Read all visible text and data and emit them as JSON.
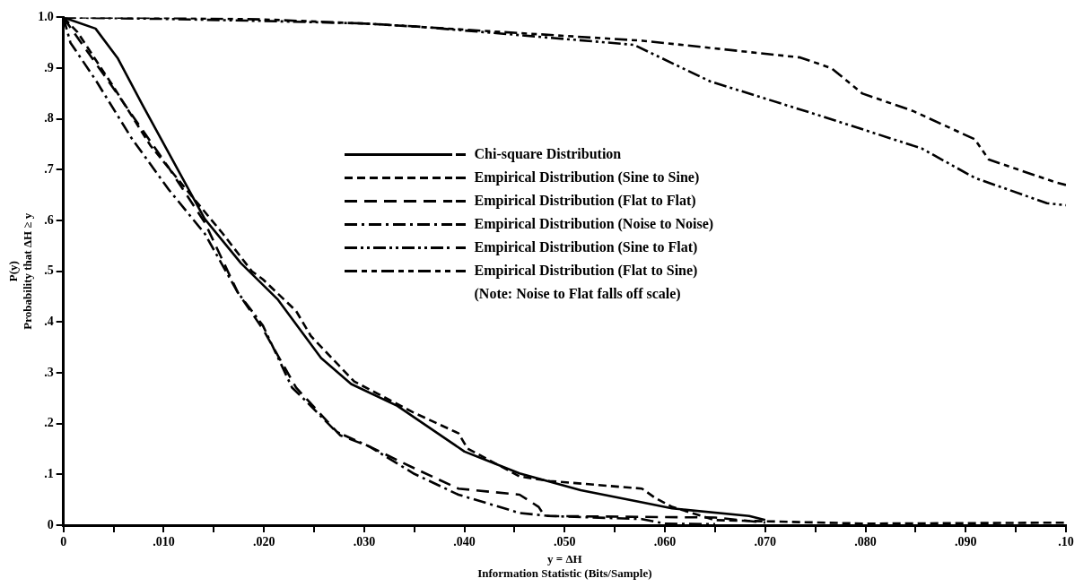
{
  "chart_data": {
    "type": "line",
    "xlabel": "y = ΔH\nInformation Statistic (Bits/Sample)",
    "ylabel": "P(y)\nProbability that ΔH ≥ y",
    "xlim": [
      0,
      0.1
    ],
    "ylim": [
      0,
      1.0
    ],
    "xticks": [
      {
        "value": 0,
        "label": "0"
      },
      {
        "value": 0.005,
        "label": null
      },
      {
        "value": 0.01,
        "label": ".010"
      },
      {
        "value": 0.015,
        "label": null
      },
      {
        "value": 0.02,
        "label": ".020"
      },
      {
        "value": 0.025,
        "label": null
      },
      {
        "value": 0.03,
        "label": ".030"
      },
      {
        "value": 0.035,
        "label": null
      },
      {
        "value": 0.04,
        "label": ".040"
      },
      {
        "value": 0.045,
        "label": null
      },
      {
        "value": 0.05,
        "label": ".050"
      },
      {
        "value": 0.055,
        "label": null
      },
      {
        "value": 0.06,
        "label": ".060"
      },
      {
        "value": 0.065,
        "label": null
      },
      {
        "value": 0.07,
        "label": ".070"
      },
      {
        "value": 0.075,
        "label": null
      },
      {
        "value": 0.08,
        "label": ".080"
      },
      {
        "value": 0.085,
        "label": null
      },
      {
        "value": 0.09,
        "label": ".090"
      },
      {
        "value": 0.095,
        "label": null
      },
      {
        "value": 0.1,
        "label": ".10"
      }
    ],
    "yticks": [
      {
        "value": 0,
        "label": "0"
      },
      {
        "value": 0.1,
        "label": ".1"
      },
      {
        "value": 0.2,
        "label": ".2"
      },
      {
        "value": 0.3,
        "label": ".3"
      },
      {
        "value": 0.4,
        "label": ".4"
      },
      {
        "value": 0.5,
        "label": ".5"
      },
      {
        "value": 0.6,
        "label": ".6"
      },
      {
        "value": 0.7,
        "label": ".7"
      },
      {
        "value": 0.8,
        "label": ".8"
      },
      {
        "value": 0.9,
        "label": ".9"
      },
      {
        "value": 1.0,
        "label": "1.0"
      }
    ],
    "grid": false,
    "legend": "center",
    "marker": "none",
    "annotations": [
      "(Note:  Noise to Flat falls off scale)"
    ],
    "series": [
      {
        "name": "Chi-square Distribution",
        "color": "#000000",
        "line_style": "solid",
        "x": [
          0,
          0.0032,
          0.0054,
          0.0079,
          0.0105,
          0.0141,
          0.0177,
          0.0214,
          0.0257,
          0.0287,
          0.0333,
          0.04,
          0.0455,
          0.0516,
          0.0577,
          0.0607,
          0.0684,
          0.07
        ],
        "values": [
          1.0,
          0.978,
          0.92,
          0.827,
          0.733,
          0.603,
          0.516,
          0.444,
          0.329,
          0.278,
          0.235,
          0.145,
          0.102,
          0.069,
          0.045,
          0.033,
          0.018,
          0.01
        ]
      },
      {
        "name": "Empirical Distribution (Sine to Sine)",
        "color": "#000000",
        "line_style": "dashed",
        "x": [
          0,
          0.0014,
          0.005,
          0.0087,
          0.0123,
          0.0159,
          0.0188,
          0.0199,
          0.0232,
          0.0247,
          0.029,
          0.0348,
          0.0394,
          0.0403,
          0.0455,
          0.0485,
          0.0577,
          0.059,
          0.0607,
          0.065,
          0.08,
          0.1
        ],
        "values": [
          1.0,
          0.971,
          0.863,
          0.747,
          0.66,
          0.574,
          0.5,
          0.484,
          0.422,
          0.372,
          0.283,
          0.223,
          0.181,
          0.151,
          0.096,
          0.087,
          0.072,
          0.054,
          0.036,
          0.01,
          0.003,
          0.005
        ]
      },
      {
        "name": "Empirical Distribution (Flat to Flat)",
        "color": "#000000",
        "line_style": "dashed",
        "x": [
          0,
          0.0007,
          0.005,
          0.0105,
          0.0141,
          0.0174,
          0.0199,
          0.0232,
          0.0276,
          0.0305,
          0.035,
          0.0394,
          0.0455,
          0.0474,
          0.048,
          0.065,
          0.07
        ],
        "values": [
          1.0,
          0.98,
          0.86,
          0.704,
          0.596,
          0.458,
          0.386,
          0.271,
          0.177,
          0.155,
          0.112,
          0.072,
          0.06,
          0.036,
          0.018,
          0.015,
          0.005
        ]
      },
      {
        "name": "Empirical Distribution (Noise to Noise)",
        "color": "#000000",
        "line_style": "dashed",
        "x": [
          0,
          0.0007,
          0.0032,
          0.0068,
          0.0105,
          0.0141,
          0.0174,
          0.0199,
          0.0228,
          0.0236,
          0.0272,
          0.0305,
          0.035,
          0.0394,
          0.0455,
          0.0485,
          0.0577,
          0.06,
          0.065
        ],
        "values": [
          1.0,
          0.95,
          0.877,
          0.762,
          0.661,
          0.574,
          0.458,
          0.393,
          0.271,
          0.256,
          0.184,
          0.155,
          0.101,
          0.06,
          0.024,
          0.018,
          0.012,
          0.003,
          0.002
        ]
      },
      {
        "name": "Empirical Distribution (Sine to Flat)",
        "color": "#000000",
        "line_style": "dashed",
        "x": [
          0,
          0.01,
          0.02,
          0.03,
          0.0353,
          0.0569,
          0.0645,
          0.0757,
          0.0856,
          0.0909,
          0.0981,
          0.1
        ],
        "values": [
          1.0,
          0.997,
          0.993,
          0.988,
          0.982,
          0.946,
          0.874,
          0.805,
          0.742,
          0.684,
          0.634,
          0.63
        ]
      },
      {
        "name": "Empirical Distribution (Flat to Sine)",
        "color": "#000000",
        "line_style": "dashed",
        "x": [
          0,
          0.01,
          0.02,
          0.0309,
          0.0578,
          0.0735,
          0.0766,
          0.0797,
          0.0847,
          0.0909,
          0.0923,
          0.099,
          0.1
        ],
        "values": [
          1.0,
          0.999,
          0.996,
          0.987,
          0.954,
          0.921,
          0.9,
          0.85,
          0.816,
          0.76,
          0.72,
          0.675,
          0.67
        ]
      }
    ]
  }
}
